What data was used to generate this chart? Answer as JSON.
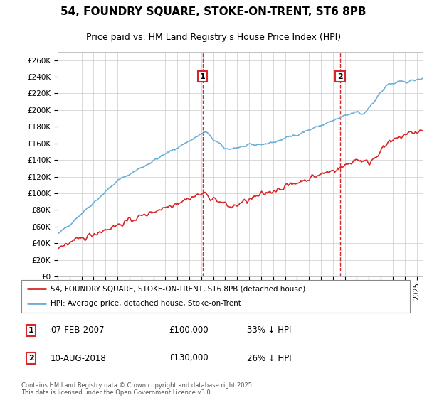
{
  "title": "54, FOUNDRY SQUARE, STOKE-ON-TRENT, ST6 8PB",
  "subtitle": "Price paid vs. HM Land Registry's House Price Index (HPI)",
  "hpi_color": "#6baed6",
  "price_color": "#d62728",
  "vline_color": "#d62728",
  "background_color": "#ffffff",
  "grid_color": "#cccccc",
  "ylim": [
    0,
    270000
  ],
  "yticks": [
    0,
    20000,
    40000,
    60000,
    80000,
    100000,
    120000,
    140000,
    160000,
    180000,
    200000,
    220000,
    240000,
    260000
  ],
  "sale1_date": "07-FEB-2007",
  "sale1_price": 100000,
  "sale1_hpi_diff": "33% ↓ HPI",
  "sale1_year": 2007.1,
  "sale2_date": "10-AUG-2018",
  "sale2_price": 130000,
  "sale2_hpi_diff": "26% ↓ HPI",
  "sale2_year": 2018.6,
  "legend_line1": "54, FOUNDRY SQUARE, STOKE-ON-TRENT, ST6 8PB (detached house)",
  "legend_line2": "HPI: Average price, detached house, Stoke-on-Trent",
  "footnote": "Contains HM Land Registry data © Crown copyright and database right 2025.\nThis data is licensed under the Open Government Licence v3.0.",
  "xmin": 1995,
  "xmax": 2025.5
}
